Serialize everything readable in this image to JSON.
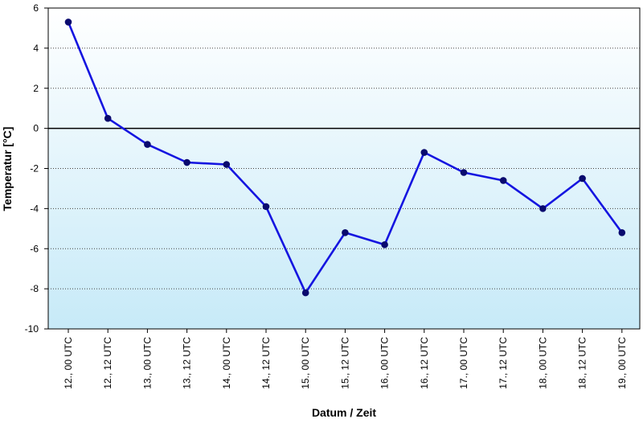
{
  "chart_data": {
    "type": "line",
    "title": "",
    "xlabel": "Datum / Zeit",
    "ylabel": "Temperatur [°C]",
    "ylim": [
      -10,
      6
    ],
    "yticks": [
      -10,
      -8,
      -6,
      -4,
      -2,
      0,
      2,
      4,
      6
    ],
    "grid": "horizontal dotted",
    "categories": [
      "12., 00 UTC",
      "12., 12 UTC",
      "13., 00 UTC",
      "13., 12 UTC",
      "14., 00 UTC",
      "14., 12 UTC",
      "15., 00 UTC",
      "15., 12 UTC",
      "16., 00 UTC",
      "16., 12 UTC",
      "17., 00 UTC",
      "17., 12 UTC",
      "18., 00 UTC",
      "18., 12 UTC",
      "19., 00 UTC"
    ],
    "series": [
      {
        "values": [
          5.3,
          0.5,
          -0.8,
          -1.7,
          -1.8,
          -3.9,
          -8.2,
          -5.2,
          -5.8,
          -1.2,
          -2.2,
          -2.6,
          -4.0,
          -2.5,
          -5.2
        ]
      }
    ],
    "colors": {
      "line": "#1515e0",
      "marker": "#0a0a6e",
      "bg_top": "#ffffff",
      "bg_bottom": "#c7eaf8",
      "zero_line": "#000000",
      "grid": "#444444"
    }
  }
}
